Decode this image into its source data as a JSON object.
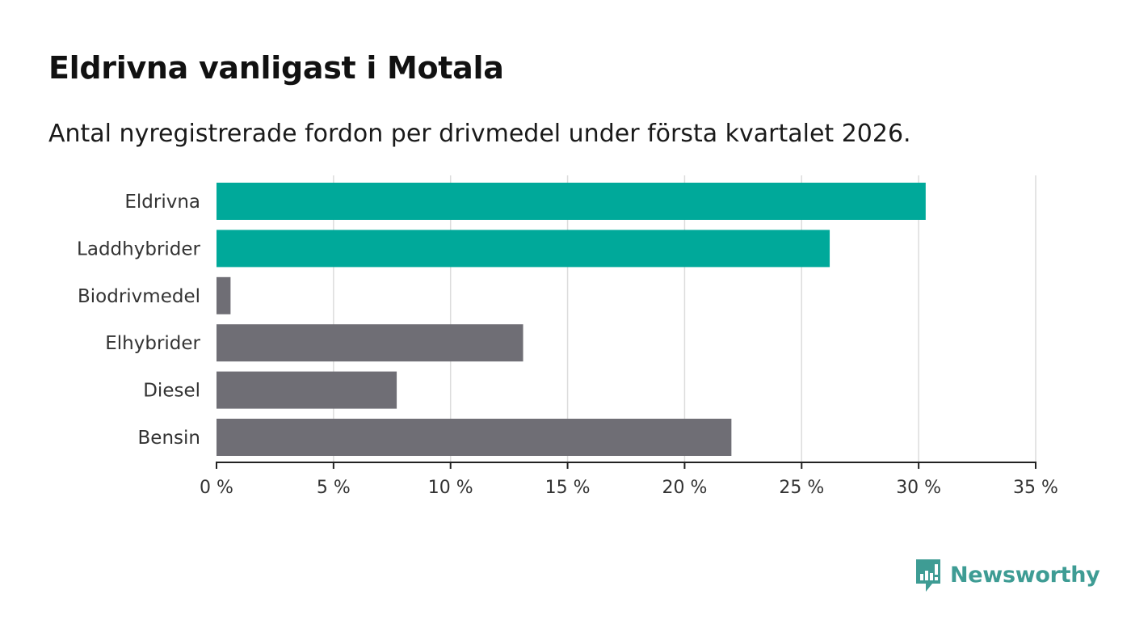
{
  "header": {
    "title": "Eldrivna vanligast i Motala",
    "subtitle": "Antal nyregistrerade fordon per drivmedel under första kvartalet 2026."
  },
  "brand": {
    "name": "Newsworthy",
    "icon": "newsworthy-logo-icon"
  },
  "colors": {
    "highlight": "#00a99a",
    "default": "#6f6e75",
    "grid": "#dcdcdc",
    "axis": "#222222",
    "brand": "#3e9c94"
  },
  "chart_data": {
    "type": "bar",
    "orientation": "horizontal",
    "title": "Eldrivna vanligast i Motala",
    "subtitle": "Antal nyregistrerade fordon per drivmedel under första kvartalet 2026.",
    "xlabel": "",
    "ylabel": "",
    "xlim": [
      0,
      35
    ],
    "grid": true,
    "categories": [
      "Eldrivna",
      "Laddhybrider",
      "Biodrivmedel",
      "Elhybrider",
      "Diesel",
      "Bensin"
    ],
    "values": [
      30.3,
      26.2,
      0.6,
      13.1,
      7.7,
      22.0
    ],
    "highlighted": [
      true,
      true,
      false,
      false,
      false,
      false
    ],
    "ticks": [
      0,
      5,
      10,
      15,
      20,
      25,
      30,
      35
    ],
    "tick_labels": [
      "0 %",
      "5 %",
      "10 %",
      "15 %",
      "20 %",
      "25 %",
      "30 %",
      "35 %"
    ]
  }
}
